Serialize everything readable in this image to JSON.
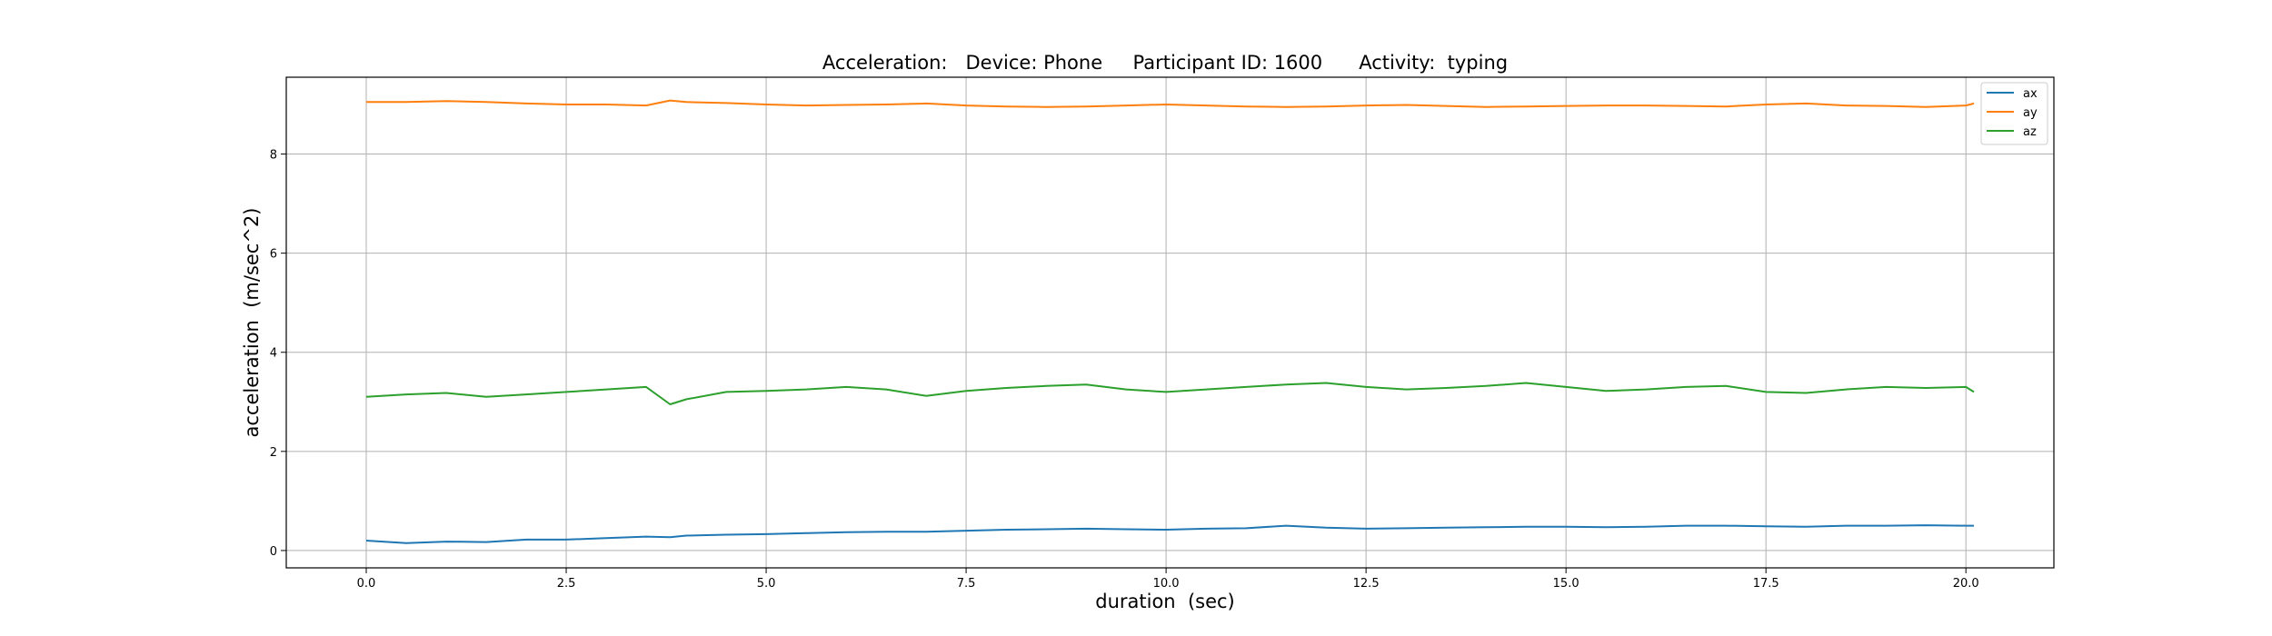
{
  "chart_data": {
    "type": "line",
    "title": "Acceleration:   Device: Phone     Participant ID: 1600      Activity:  typing",
    "xlabel": "duration  (sec)",
    "ylabel": "acceleration  (m/sec^2)",
    "xlim": [
      -1.0,
      21.1
    ],
    "ylim": [
      -0.35,
      9.55
    ],
    "xticks": [
      0.0,
      2.5,
      5.0,
      7.5,
      10.0,
      12.5,
      15.0,
      17.5,
      20.0
    ],
    "xtick_labels": [
      "0.0",
      "2.5",
      "5.0",
      "7.5",
      "10.0",
      "12.5",
      "15.0",
      "17.5",
      "20.0"
    ],
    "yticks": [
      0,
      2,
      4,
      6,
      8
    ],
    "ytick_labels": [
      "0",
      "2",
      "4",
      "6",
      "8"
    ],
    "grid": true,
    "legend_position": "top-right",
    "x": [
      0.0,
      0.5,
      1.0,
      1.5,
      2.0,
      2.5,
      3.0,
      3.5,
      3.8,
      4.0,
      4.5,
      5.0,
      5.5,
      6.0,
      6.5,
      7.0,
      7.5,
      8.0,
      8.5,
      9.0,
      9.5,
      10.0,
      10.5,
      11.0,
      11.5,
      12.0,
      12.5,
      13.0,
      13.5,
      14.0,
      14.5,
      15.0,
      15.5,
      16.0,
      16.5,
      17.0,
      17.5,
      18.0,
      18.5,
      19.0,
      19.5,
      20.0,
      20.1
    ],
    "series": [
      {
        "name": "ax",
        "color": "#1f77b4",
        "values": [
          0.2,
          0.15,
          0.18,
          0.17,
          0.22,
          0.22,
          0.25,
          0.28,
          0.27,
          0.3,
          0.32,
          0.33,
          0.35,
          0.37,
          0.38,
          0.38,
          0.4,
          0.42,
          0.43,
          0.44,
          0.43,
          0.42,
          0.44,
          0.45,
          0.5,
          0.46,
          0.44,
          0.45,
          0.46,
          0.47,
          0.48,
          0.48,
          0.47,
          0.48,
          0.5,
          0.5,
          0.49,
          0.48,
          0.5,
          0.5,
          0.51,
          0.5,
          0.5
        ]
      },
      {
        "name": "ay",
        "color": "#ff7f0e",
        "values": [
          9.05,
          9.05,
          9.07,
          9.05,
          9.02,
          9.0,
          9.0,
          8.98,
          9.08,
          9.05,
          9.03,
          9.0,
          8.98,
          8.99,
          9.0,
          9.02,
          8.98,
          8.96,
          8.95,
          8.96,
          8.98,
          9.0,
          8.98,
          8.96,
          8.95,
          8.96,
          8.98,
          8.99,
          8.97,
          8.95,
          8.96,
          8.97,
          8.98,
          8.98,
          8.97,
          8.96,
          9.0,
          9.02,
          8.98,
          8.97,
          8.95,
          8.98,
          9.02
        ]
      },
      {
        "name": "az",
        "color": "#2ca02c",
        "values": [
          3.1,
          3.15,
          3.18,
          3.1,
          3.15,
          3.2,
          3.25,
          3.3,
          2.95,
          3.05,
          3.2,
          3.22,
          3.25,
          3.3,
          3.25,
          3.12,
          3.22,
          3.28,
          3.32,
          3.35,
          3.25,
          3.2,
          3.25,
          3.3,
          3.35,
          3.38,
          3.3,
          3.25,
          3.28,
          3.32,
          3.38,
          3.3,
          3.22,
          3.25,
          3.3,
          3.32,
          3.2,
          3.18,
          3.25,
          3.3,
          3.28,
          3.3,
          3.2
        ]
      }
    ]
  }
}
